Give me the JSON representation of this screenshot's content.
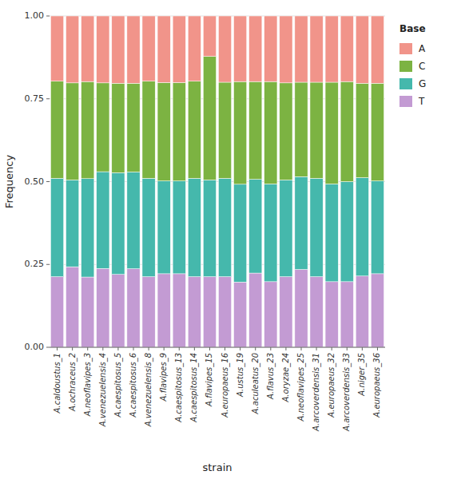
{
  "chart_data": {
    "type": "bar",
    "stacked": true,
    "xlabel": "strain",
    "ylabel": "Frequency",
    "legend_title": "Base",
    "categories": [
      "A.caldoustus_1",
      "A.ochraceus_2",
      "A.neoflavipes_3",
      "A.venezuelensis_4",
      "A.caespitosus_5",
      "A.caespitosus_6",
      "A.venezuelensis_8",
      "A.flavipes_9",
      "A.caespitosus_13",
      "A.caespitosus_14",
      "A.flavipes_15",
      "A.europaeus_16",
      "A.ustus_19",
      "A.aculeatus_20",
      "A.flavus_23",
      "A.oryzae_24",
      "A.neoflavipes_25",
      "A.arcoverdensis_31",
      "A.europaeus_32",
      "A.arcoverdensis_33",
      "A.niger_35",
      "A.europaeus_36"
    ],
    "series": [
      {
        "name": "T",
        "color": "#C39BD3",
        "values": [
          0.213,
          0.243,
          0.212,
          0.238,
          0.22,
          0.237,
          0.213,
          0.222,
          0.222,
          0.213,
          0.213,
          0.213,
          0.197,
          0.224,
          0.198,
          0.213,
          0.235,
          0.213,
          0.198,
          0.198,
          0.215,
          0.222
        ]
      },
      {
        "name": "G",
        "color": "#45B8AC",
        "values": [
          0.297,
          0.262,
          0.297,
          0.292,
          0.307,
          0.292,
          0.297,
          0.28,
          0.28,
          0.297,
          0.292,
          0.297,
          0.295,
          0.283,
          0.295,
          0.292,
          0.28,
          0.297,
          0.295,
          0.302,
          0.297,
          0.28
        ]
      },
      {
        "name": "C",
        "color": "#7CB342",
        "values": [
          0.293,
          0.293,
          0.293,
          0.268,
          0.27,
          0.268,
          0.293,
          0.297,
          0.297,
          0.293,
          0.373,
          0.29,
          0.31,
          0.295,
          0.309,
          0.293,
          0.285,
          0.29,
          0.307,
          0.302,
          0.285,
          0.295
        ]
      },
      {
        "name": "A",
        "color": "#F1948A",
        "values": [
          0.197,
          0.202,
          0.198,
          0.202,
          0.203,
          0.203,
          0.197,
          0.201,
          0.201,
          0.197,
          0.122,
          0.2,
          0.198,
          0.198,
          0.198,
          0.202,
          0.2,
          0.2,
          0.2,
          0.198,
          0.203,
          0.203
        ]
      }
    ],
    "ylim": [
      0,
      1.0
    ],
    "yticks": [
      {
        "value": 0,
        "label": "0.00"
      },
      0.25,
      {
        "value": 0.5,
        "label": "0.50"
      },
      0.75,
      {
        "value": 1.0,
        "label": "1.00"
      }
    ],
    "grid": true
  }
}
